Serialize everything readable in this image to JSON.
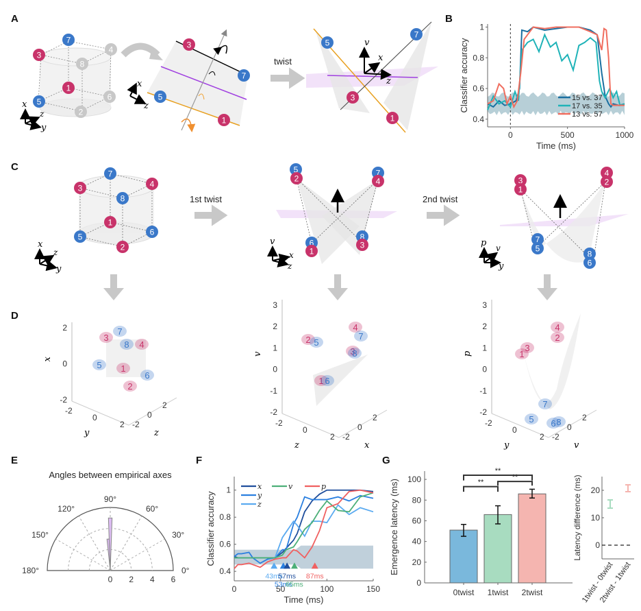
{
  "panels": {
    "A": {
      "label": "A",
      "cube_nodes": [
        "7",
        "3",
        "4",
        "8",
        "1",
        "5",
        "6",
        "2"
      ],
      "twist_label": "twist",
      "axes": {
        "x": "x",
        "y": "y",
        "z": "z",
        "v": "v"
      },
      "plane_nodes": [
        "3",
        "7",
        "5",
        "1"
      ],
      "twisted_nodes": [
        "5",
        "7",
        "3",
        "1"
      ]
    },
    "B": {
      "label": "B"
    },
    "C": {
      "label": "C",
      "first_twist_label": "1st twist",
      "second_twist_label": "2nd twist",
      "cube_nodes": [
        "7",
        "3",
        "4",
        "8",
        "1",
        "5",
        "6",
        "2"
      ],
      "twist1_nodes": [
        "5",
        "2",
        "7",
        "4",
        "6",
        "1",
        "8",
        "3"
      ],
      "twist2_nodes": [
        "3",
        "1",
        "4",
        "2",
        "7",
        "5",
        "8",
        "6"
      ],
      "axes1": [
        "x",
        "z",
        "y"
      ],
      "axes2": [
        "v",
        "x",
        "z"
      ],
      "axes3": [
        "p",
        "v",
        "y"
      ]
    },
    "D": {
      "label": "D",
      "plots": [
        {
          "zlabel": "x",
          "xlabel": "y",
          "ylabel": "z",
          "zticks": [
            "2",
            "0",
            "-2"
          ],
          "xticks": [
            "-2",
            "0",
            "2"
          ],
          "yticks": [
            "-2",
            "0",
            "2"
          ],
          "nodes": [
            "7",
            "3",
            "8",
            "4",
            "5",
            "1",
            "6",
            "2"
          ]
        },
        {
          "zlabel": "v",
          "xlabel": "z",
          "ylabel": "x",
          "zticks": [
            "3",
            "2",
            "1",
            "0",
            "-1",
            "-2"
          ],
          "xticks": [
            "-2",
            "0",
            "2"
          ],
          "yticks": [
            "-2",
            "0",
            "2"
          ],
          "nodes": [
            "4",
            "7",
            "2",
            "5",
            "3",
            "8",
            "1",
            "6"
          ]
        },
        {
          "zlabel": "p",
          "xlabel": "y",
          "ylabel": "v",
          "zticks": [
            "3",
            "2",
            "1",
            "0",
            "-1",
            "-2"
          ],
          "xticks": [
            "-2",
            "0",
            "2"
          ],
          "yticks": [
            "-2",
            "0",
            "2"
          ],
          "nodes": [
            "4",
            "2",
            "3",
            "1",
            "7",
            "5",
            "6",
            "8"
          ]
        }
      ]
    },
    "E": {
      "label": "E"
    },
    "F": {
      "label": "F"
    },
    "G": {
      "label": "G"
    }
  },
  "colors": {
    "pink": "#c8336a",
    "blue": "#3a78c9",
    "grey_node": "#c8c8c8",
    "purple": "#a040e0",
    "orange": "#e8a020",
    "lilac": "#e6ccf5",
    "b_15_37": "#1a6fa0",
    "b_17_35": "#1fb3b8",
    "b_13_57": "#f06d5e",
    "f_x": "#1f4e9c",
    "f_y": "#2a7fe0",
    "f_z": "#5aaaf0",
    "f_v": "#4caf78",
    "f_p": "#f06060",
    "g_0": "#7ab8dc",
    "g_1": "#a8dcc0",
    "g_2": "#f5b5b0"
  },
  "chart_data": [
    {
      "id": "B",
      "type": "line",
      "title": "",
      "xlabel": "Time (ms)",
      "ylabel": "Classifier accuracy",
      "xlim": [
        -200,
        1000
      ],
      "ylim": [
        0.35,
        1.02
      ],
      "xticks": [
        0,
        500,
        1000
      ],
      "yticks": [
        0.4,
        0.6,
        0.8,
        1
      ],
      "ytick_labels": [
        "0.4",
        "0.6",
        "0.8",
        "1"
      ],
      "onset_line_x": 0,
      "legend_position": "bottom-right",
      "chance_band": {
        "x": [
          -200,
          1000
        ],
        "lower": 0.44,
        "upper": 0.56
      },
      "series": [
        {
          "name": "15 vs. 37",
          "x": [
            -200,
            -150,
            -100,
            -50,
            0,
            50,
            80,
            100,
            150,
            200,
            300,
            400,
            500,
            600,
            700,
            760,
            800,
            830,
            860,
            880,
            900,
            950,
            1000
          ],
          "y": [
            0.5,
            0.48,
            0.52,
            0.49,
            0.5,
            0.52,
            0.6,
            0.98,
            0.97,
            1,
            0.98,
            0.99,
            1,
            1,
            0.98,
            0.95,
            0.7,
            0.55,
            0.5,
            0.48,
            0.5,
            0.49,
            0.5
          ]
        },
        {
          "name": "17 vs. 35",
          "x": [
            -200,
            -150,
            -100,
            -50,
            0,
            40,
            70,
            100,
            150,
            200,
            250,
            300,
            350,
            400,
            450,
            500,
            550,
            600,
            650,
            700,
            750,
            780,
            800,
            830,
            870,
            900,
            930,
            960,
            1000
          ],
          "y": [
            0.46,
            0.55,
            0.5,
            0.52,
            0.48,
            0.58,
            0.52,
            0.85,
            0.9,
            0.92,
            0.84,
            0.95,
            0.87,
            0.9,
            0.78,
            0.82,
            0.72,
            0.88,
            0.9,
            0.93,
            0.9,
            0.65,
            0.58,
            0.54,
            0.6,
            0.54,
            0.58,
            0.49,
            0.5
          ]
        },
        {
          "name": "13 vs. 57",
          "x": [
            -200,
            -150,
            -100,
            -60,
            -30,
            0,
            30,
            60,
            90,
            120,
            150,
            200,
            300,
            400,
            500,
            600,
            700,
            760,
            800,
            820,
            840,
            860,
            880,
            900,
            950,
            1000
          ],
          "y": [
            0.5,
            0.52,
            0.63,
            0.6,
            0.5,
            0.55,
            0.48,
            0.52,
            0.7,
            0.92,
            0.95,
            1,
            0.99,
            1,
            1,
            1,
            0.97,
            0.95,
            0.85,
            0.99,
            0.98,
            0.8,
            0.5,
            0.49,
            0.49,
            0.49
          ]
        }
      ]
    },
    {
      "id": "E",
      "type": "polar-histogram",
      "title": "Angles between empirical axes",
      "theta_ticks": [
        0,
        30,
        60,
        90,
        120,
        150,
        180
      ],
      "theta_tick_labels": [
        "0°",
        "30°",
        "60°",
        "90°",
        "120°",
        "150°",
        "180°"
      ],
      "r_ticks": [
        0,
        2,
        4,
        6
      ],
      "rlim": [
        0,
        6
      ],
      "bins_deg": [
        [
          88,
          92
        ],
        [
          92,
          96
        ]
      ],
      "counts": [
        5,
        3
      ],
      "small_bin": {
        "range_deg": [
          88,
          96
        ],
        "count": 1
      }
    },
    {
      "id": "F",
      "type": "line",
      "xlabel": "Time (ms)",
      "ylabel": "Classifier accuracy",
      "xlim": [
        0,
        150
      ],
      "ylim": [
        0.33,
        1.1
      ],
      "xticks": [
        0,
        50,
        100,
        150
      ],
      "yticks": [
        0.4,
        0.6,
        0.8,
        1
      ],
      "ytick_labels": [
        "0.4",
        "0.6",
        "0.8",
        "1"
      ],
      "legend_position": "top-left",
      "chance_band": {
        "x": [
          0,
          150
        ],
        "lower": 0.45,
        "upper": 0.56
      },
      "x": [
        0,
        4,
        8,
        16,
        20,
        28,
        36,
        44,
        52,
        56,
        64,
        68,
        76,
        84,
        92,
        100,
        112,
        124,
        136,
        150
      ],
      "series": [
        {
          "name": "x",
          "values": [
            0.51,
            0.5,
            0.5,
            0.5,
            0.5,
            0.5,
            0.5,
            0.5,
            0.54,
            0.57,
            0.63,
            0.68,
            0.84,
            0.92,
            0.97,
            1,
            1,
            1,
            1,
            0.99
          ]
        },
        {
          "name": "y",
          "values": [
            0.51,
            0.53,
            0.53,
            0.54,
            0.5,
            0.46,
            0.49,
            0.5,
            0.56,
            0.56,
            0.75,
            0.8,
            0.95,
            0.93,
            0.93,
            0.93,
            0.95,
            0.92,
            0.96,
            0.94
          ]
        },
        {
          "name": "z",
          "values": [
            0.5,
            0.5,
            0.5,
            0.5,
            0.5,
            0.5,
            0.5,
            0.5,
            0.65,
            0.69,
            0.77,
            0.74,
            0.66,
            0.77,
            0.77,
            0.76,
            0.89,
            0.82,
            0.87,
            0.84
          ]
        },
        {
          "name": "v",
          "values": [
            0.5,
            0.5,
            0.5,
            0.5,
            0.5,
            0.5,
            0.5,
            0.5,
            0.52,
            0.56,
            0.58,
            0.62,
            0.71,
            0.76,
            0.85,
            0.92,
            0.85,
            0.84,
            0.95,
            0.98
          ]
        },
        {
          "name": "p",
          "values": [
            0.42,
            0.45,
            0.45,
            0.46,
            0.45,
            0.43,
            0.47,
            0.49,
            0.5,
            0.5,
            0.56,
            0.55,
            0.5,
            0.58,
            0.7,
            0.87,
            0.9,
            0.99,
            1,
            0.98
          ]
        }
      ],
      "onset_markers": [
        {
          "series": "z",
          "time_ms": 43,
          "label": "43ms"
        },
        {
          "series": "y",
          "time_ms": 53,
          "label": "53ms"
        },
        {
          "series": "x",
          "time_ms": 57,
          "label": "57ms"
        },
        {
          "series": "v",
          "time_ms": 65,
          "label": "65ms"
        },
        {
          "series": "p",
          "time_ms": 87,
          "label": "87ms"
        }
      ]
    },
    {
      "id": "G-bar",
      "type": "bar",
      "ylabel": "Emergence latency (ms)",
      "categories": [
        "0twist",
        "1twist",
        "2twist"
      ],
      "values": [
        51,
        66,
        86
      ],
      "errors": [
        [
          45,
          56.5
        ],
        [
          57,
          74.5
        ],
        [
          82,
          90.5
        ]
      ],
      "ylim": [
        0,
        108
      ],
      "yticks": [
        0,
        20,
        40,
        60,
        80,
        100
      ],
      "significance": [
        {
          "pair": [
            "0twist",
            "1twist"
          ],
          "label": "**"
        },
        {
          "pair": [
            "1twist",
            "2twist"
          ],
          "label": "**"
        },
        {
          "pair": [
            "0twist",
            "2twist"
          ],
          "label": "**"
        }
      ]
    },
    {
      "id": "G-diff",
      "type": "errorbar",
      "ylabel": "Latency difference (ms)",
      "categories": [
        "1twist - 0twist",
        "2twist - 1twist"
      ],
      "values": [
        15,
        20.5
      ],
      "errors": [
        [
          13.5,
          16.5
        ],
        [
          19.5,
          22
        ]
      ],
      "ylim": [
        -5,
        25
      ],
      "yticks": [
        0,
        10,
        20
      ],
      "reference_line": 0
    }
  ]
}
